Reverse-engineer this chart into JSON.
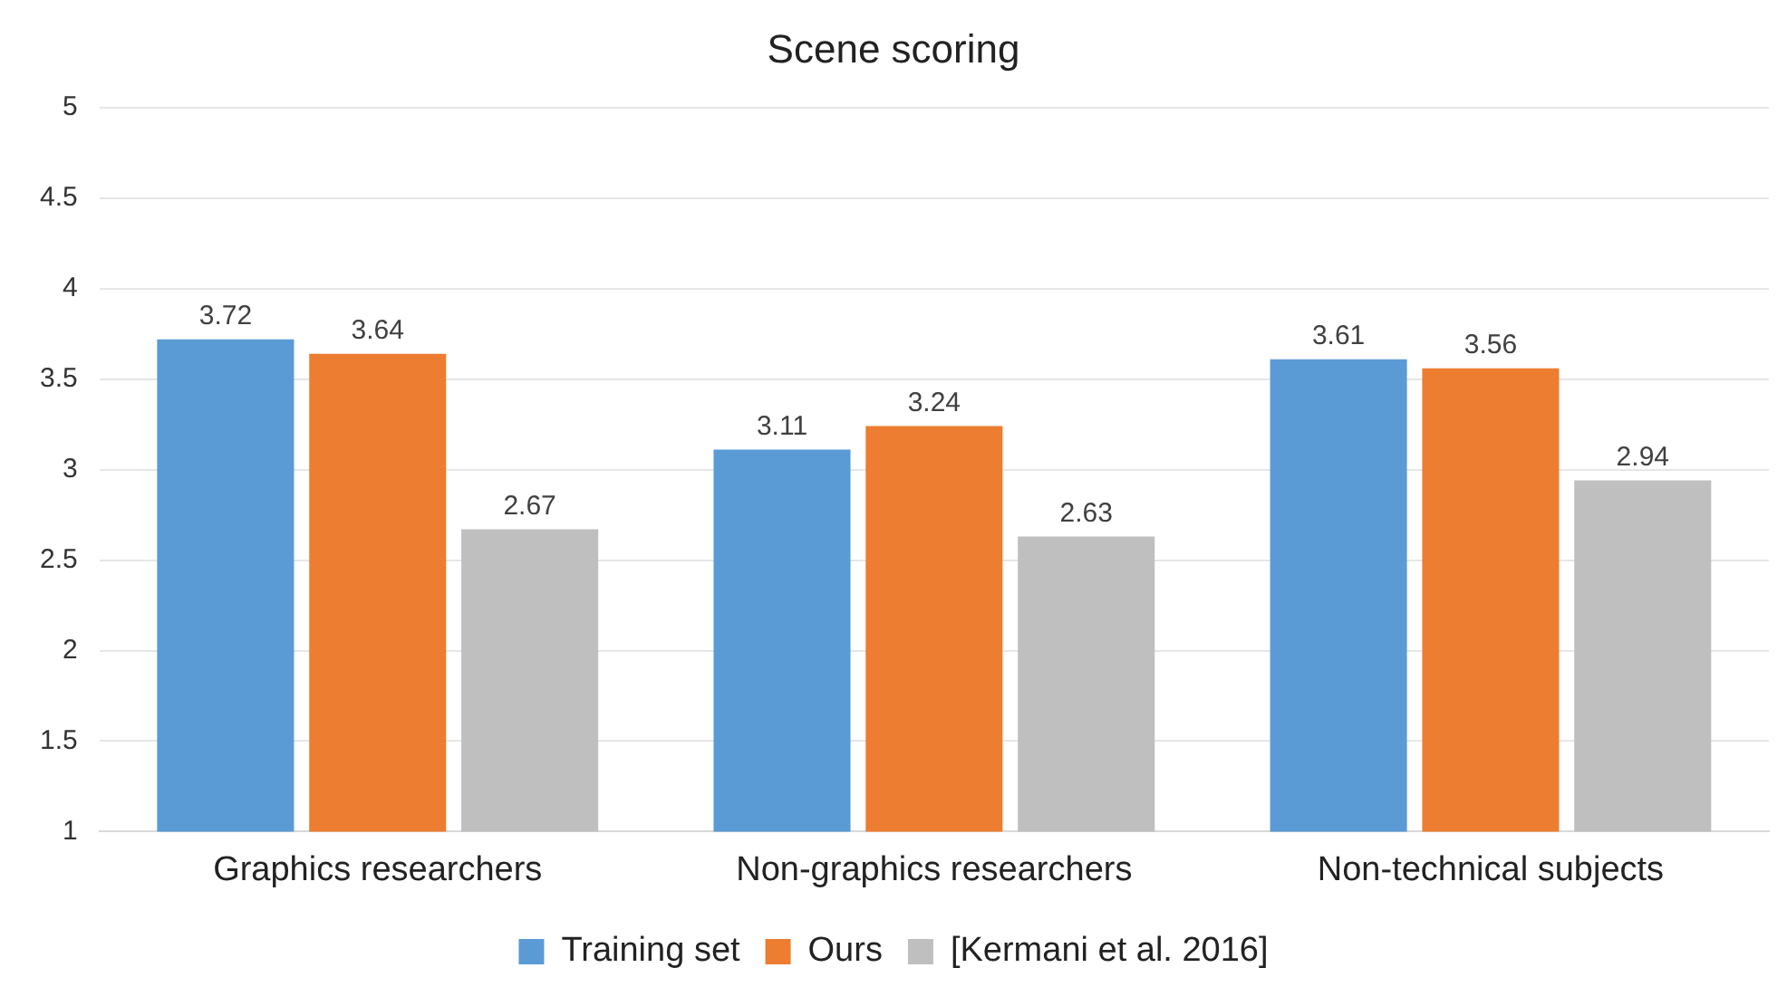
{
  "chart_data": {
    "type": "bar",
    "title": "Scene scoring",
    "categories": [
      "Graphics researchers",
      "Non-graphics researchers",
      "Non-technical subjects"
    ],
    "series": [
      {
        "name": "Training set",
        "color": "#5b9bd5",
        "values": [
          3.72,
          3.11,
          3.61
        ]
      },
      {
        "name": "Ours",
        "color": "#ed7d31",
        "values": [
          3.64,
          3.24,
          3.56
        ]
      },
      {
        "name": "[Kermani et al. 2016]",
        "color": "#bfbfbf",
        "values": [
          2.67,
          2.63,
          2.94
        ]
      }
    ],
    "ylim": [
      1,
      5
    ],
    "yticks": [
      1,
      1.5,
      2,
      2.5,
      3,
      3.5,
      4,
      4.5,
      5
    ],
    "grid": "y",
    "legend": "bottom",
    "data_labels": true
  }
}
